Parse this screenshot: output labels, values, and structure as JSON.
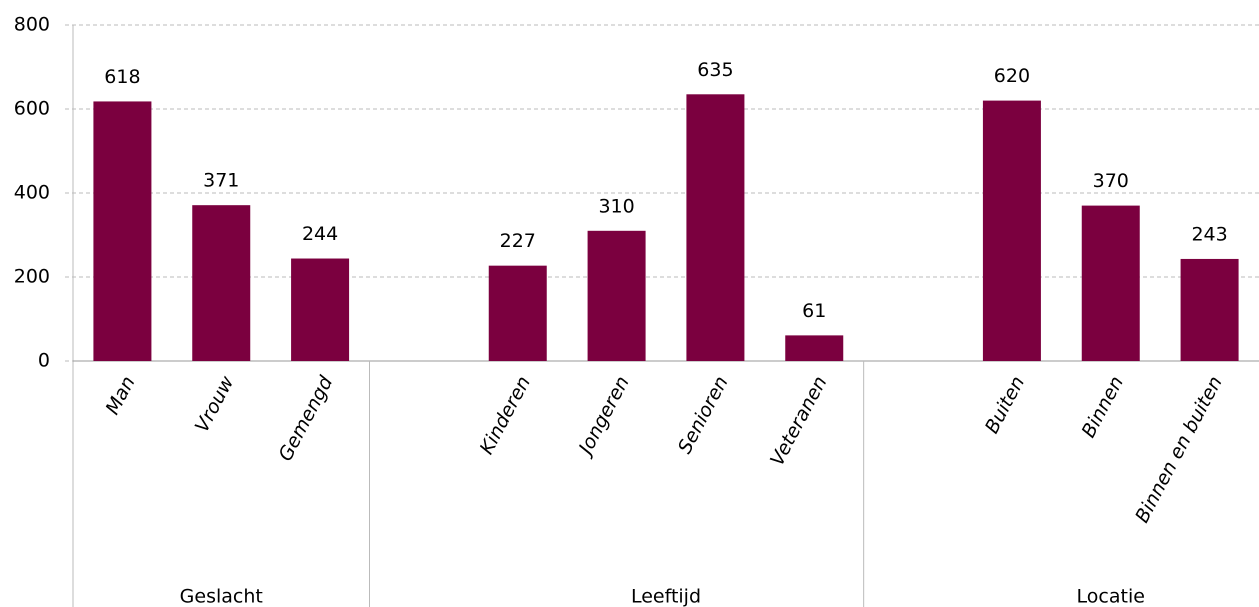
{
  "chart_data": {
    "type": "bar",
    "categories": [
      "Man",
      "Vrouw",
      "Gemengd",
      null,
      "Kinderen",
      "Jongeren",
      "Senioren",
      "Veteranen",
      null,
      "Buiten",
      "Binnen",
      "Binnen en buiten"
    ],
    "values": [
      618,
      371,
      244,
      null,
      227,
      310,
      635,
      61,
      null,
      620,
      370,
      243
    ],
    "groups": [
      "Geslacht",
      "Leeftijd",
      "Locatie"
    ],
    "color": "#7b003f",
    "ylim": [
      0,
      800
    ],
    "yticks": [
      0,
      200,
      400,
      600,
      800
    ],
    "grid": true
  }
}
